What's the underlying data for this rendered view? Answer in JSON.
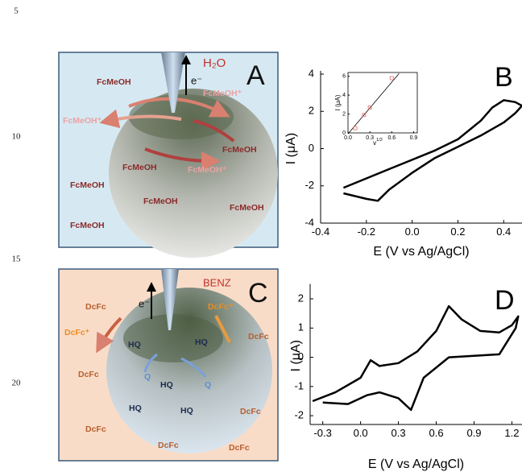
{
  "line_numbers": [
    "5",
    "10",
    "15",
    "20"
  ],
  "panel_a": {
    "letter": "A",
    "probe": "H₂O",
    "electron": "e⁻",
    "species": [
      "FcMeOH",
      "FcMeOH⁺",
      "FcMeOH⁺",
      "FcMeOH",
      "FcMeOH",
      "FcMeOH⁺",
      "FcMeOH",
      "FcMeOH",
      "FcMeOH",
      "FcMeOH"
    ]
  },
  "panel_c": {
    "letter": "C",
    "probe": "BENZ",
    "electron": "e⁻",
    "species": [
      "DcFc",
      "DcFc⁺",
      "DcFc⁺",
      "DcFc",
      "HQ",
      "HQ",
      "DcFc",
      "Q",
      "HQ",
      "Q",
      "HQ",
      "HQ",
      "DcFc",
      "DcFc",
      "DcFc",
      "DcFc"
    ]
  },
  "chart_data": [
    {
      "type": "line",
      "panel_label": "B",
      "x_label": "E (V vs Ag/AgCl)",
      "y_label": "I (μA)",
      "xlim": [
        -0.4,
        0.48
      ],
      "ylim": [
        -4,
        4
      ],
      "xticks": [
        -0.4,
        -0.2,
        {
          "value": 0,
          "label": "0.0"
        },
        0.2,
        0.4
      ],
      "yticks": [
        -4,
        -2,
        0,
        2,
        4
      ],
      "series": [
        {
          "color": "#000000",
          "x": [
            -0.3,
            -0.2,
            -0.1,
            0,
            0.1,
            0.2,
            0.3,
            0.35,
            0.4,
            0.45,
            0.48,
            0.45,
            0.4,
            0.3,
            0.2,
            0.1,
            0,
            -0.1,
            -0.15,
            -0.2,
            -0.3
          ],
          "values": [
            -2.1,
            -1.6,
            -1.1,
            -0.6,
            -0.1,
            0.5,
            1.5,
            2.2,
            2.6,
            2.5,
            2.3,
            1.9,
            1.4,
            0.7,
            0.1,
            -0.5,
            -1.3,
            -2.2,
            -2.8,
            -2.7,
            -2.4
          ]
        }
      ]
    },
    {
      "type": "line",
      "x_label": "v",
      "x_label_sup": "1/2",
      "y_label": "I (μA)",
      "xlim": [
        0,
        0.95
      ],
      "ylim": [
        0,
        6.4
      ],
      "xticks": [
        {
          "value": 0,
          "label": "0.0"
        },
        0.3,
        0.6,
        0.9
      ],
      "yticks": [
        0,
        2,
        4,
        6
      ],
      "series": [
        {
          "type": "line",
          "color": "#000000",
          "x": [
            0,
            0.7
          ],
          "values": [
            -0.1,
            6.3
          ]
        },
        {
          "type": "scatter",
          "color": "#e07070",
          "x": [
            0.1,
            0.22,
            0.3,
            0.6
          ],
          "values": [
            0.5,
            1.9,
            2.7,
            5.8
          ]
        }
      ]
    },
    {
      "type": "line",
      "panel_label": "D",
      "x_label": "E (V vs Ag/AgCl)",
      "y_label": "I (μA)",
      "xlim": [
        -0.4,
        1.28
      ],
      "ylim": [
        -2.3,
        2.4
      ],
      "xticks": [
        -0.3,
        {
          "value": 0,
          "label": "0.0"
        },
        0.3,
        0.6,
        0.9,
        1.2
      ],
      "yticks": [
        -2,
        -1,
        0,
        1,
        2
      ],
      "series": [
        {
          "color": "#000000",
          "x": [
            -0.38,
            -0.2,
            0,
            0.08,
            0.15,
            0.3,
            0.45,
            0.6,
            0.7,
            0.8,
            0.95,
            1.1,
            1.2,
            1.25,
            1.23,
            1.1,
            0.9,
            0.7,
            0.5,
            0.4,
            0.3,
            0.15,
            0.05,
            -0.1,
            -0.3
          ],
          "values": [
            -1.5,
            -1.2,
            -0.7,
            -0.1,
            -0.3,
            -0.2,
            0.2,
            0.9,
            1.75,
            1.3,
            0.9,
            0.85,
            1.1,
            1.4,
            1.0,
            0.1,
            0.05,
            0,
            -0.7,
            -1.8,
            -1.4,
            -1.2,
            -1.3,
            -1.6,
            -1.55
          ]
        }
      ]
    }
  ]
}
